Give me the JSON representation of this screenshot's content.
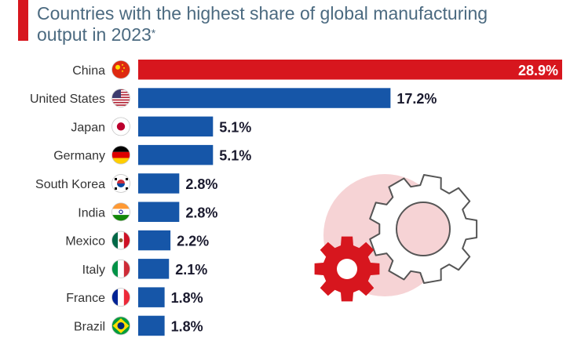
{
  "header": {
    "title_main": "Countries with the highest share of global manufacturing output in 2023",
    "title_asterisk": "*"
  },
  "colors": {
    "highlight": "#d7161e",
    "bar": "#1656a8",
    "deco_circle": "#f6d3d5",
    "gear_small": "#d7161e",
    "gear_large_stroke": "#555555"
  },
  "icons": [
    "gear-icon-large",
    "gear-icon-small"
  ],
  "chart_data": {
    "type": "bar",
    "orientation": "horizontal",
    "title": "Countries with the highest share of global manufacturing output in 2023*",
    "categories": [
      "China",
      "United States",
      "Japan",
      "Germany",
      "South Korea",
      "India",
      "Mexico",
      "Italy",
      "France",
      "Brazil"
    ],
    "values": [
      28.9,
      17.2,
      5.1,
      5.1,
      2.8,
      2.8,
      2.2,
      2.1,
      1.8,
      1.8
    ],
    "value_labels": [
      "28.9%",
      "17.2%",
      "5.1%",
      "5.1%",
      "2.8%",
      "2.8%",
      "2.2%",
      "2.1%",
      "1.8%",
      "1.8%"
    ],
    "flags": [
      "china-flag-icon",
      "usa-flag-icon",
      "japan-flag-icon",
      "germany-flag-icon",
      "south-korea-flag-icon",
      "india-flag-icon",
      "mexico-flag-icon",
      "italy-flag-icon",
      "france-flag-icon",
      "brazil-flag-icon"
    ],
    "highlight_index": 0,
    "xlim": [
      0,
      28.9
    ],
    "xlabel": "",
    "ylabel": "",
    "grid": false,
    "legend": "none"
  }
}
